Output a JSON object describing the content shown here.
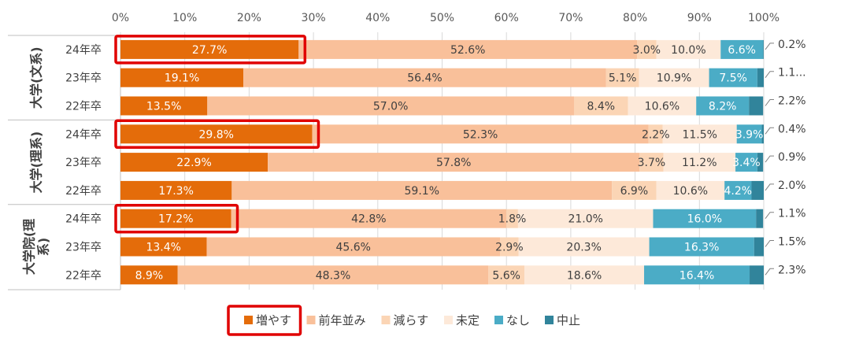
{
  "chart_data": {
    "type": "bar",
    "stacked": true,
    "orientation": "horizontal",
    "xlim": [
      0,
      100
    ],
    "x_ticks": [
      "0%",
      "10%",
      "20%",
      "30%",
      "40%",
      "50%",
      "60%",
      "70%",
      "80%",
      "90%",
      "100%"
    ],
    "groups": [
      {
        "label": "大学(文系)",
        "label_lines": [
          "大学(文系)"
        ],
        "rows": [
          "24年卒",
          "23年卒",
          "22年卒"
        ]
      },
      {
        "label": "大学(理系)",
        "label_lines": [
          "大学(理系)"
        ],
        "rows": [
          "24年卒",
          "23年卒",
          "22年卒"
        ]
      },
      {
        "label": "大学院(理系)",
        "label_lines": [
          "大学院(理",
          "系)"
        ],
        "rows": [
          "24年卒",
          "23年卒",
          "22年卒"
        ]
      }
    ],
    "categories": [
      "24年卒",
      "23年卒",
      "22年卒",
      "24年卒",
      "23年卒",
      "22年卒",
      "24年卒",
      "23年卒",
      "22年卒"
    ],
    "series": [
      {
        "name": "増やす",
        "color": "#E46C0A",
        "values": [
          27.7,
          19.1,
          13.5,
          29.8,
          22.9,
          17.3,
          17.2,
          13.4,
          8.9
        ],
        "labels": [
          "27.7%",
          "19.1%",
          "13.5%",
          "29.8%",
          "22.9%",
          "17.3%",
          "17.2%",
          "13.4%",
          "8.9%"
        ]
      },
      {
        "name": "前年並み",
        "color": "#F9C09A",
        "values": [
          52.6,
          56.4,
          57.0,
          52.3,
          57.8,
          59.1,
          42.8,
          45.6,
          48.3
        ],
        "labels": [
          "52.6%",
          "56.4%",
          "57.0%",
          "52.3%",
          "57.8%",
          "59.1%",
          "42.8%",
          "45.6%",
          "48.3%"
        ]
      },
      {
        "name": "減らす",
        "color": "#FBD5B5",
        "values": [
          3.0,
          5.1,
          8.4,
          2.2,
          3.7,
          6.9,
          1.8,
          2.9,
          5.6
        ],
        "labels": [
          "3.0%",
          "5.1%",
          "8.4%",
          "2.2%",
          "3.7%",
          "6.9%",
          "1.8%",
          "2.9%",
          "5.6%"
        ]
      },
      {
        "name": "未定",
        "color": "#FDE9D9",
        "values": [
          10.0,
          10.9,
          10.6,
          11.5,
          11.2,
          10.6,
          21.0,
          20.3,
          18.6
        ],
        "labels": [
          "10.0%",
          "10.9%",
          "10.6%",
          "11.5%",
          "11.2%",
          "10.6%",
          "21.0%",
          "20.3%",
          "18.6%"
        ]
      },
      {
        "name": "なし",
        "color": "#4BACC6",
        "values": [
          6.6,
          7.5,
          8.2,
          3.9,
          3.4,
          4.2,
          16.0,
          16.3,
          16.4
        ],
        "labels": [
          "6.6%",
          "7.5%",
          "8.2%",
          "3.9%",
          "3.4%",
          "4.2%",
          "16.0%",
          "16.3%",
          "16.4%"
        ]
      },
      {
        "name": "中止",
        "color": "#31849B",
        "values": [
          0.2,
          1.1,
          2.2,
          0.4,
          0.9,
          2.0,
          1.1,
          1.5,
          2.3
        ],
        "labels": [
          "0.2%",
          "1.1...",
          "2.2%",
          "0.4%",
          "0.9%",
          "2.0%",
          "1.1%",
          "1.5%",
          "2.3%"
        ]
      }
    ],
    "highlighted_rows": [
      0,
      3,
      6
    ],
    "highlighted_legend": "増やす",
    "highlight_color": "#E00000",
    "title": "",
    "xlabel": "",
    "ylabel": "",
    "legend_position": "bottom",
    "grid": true
  }
}
